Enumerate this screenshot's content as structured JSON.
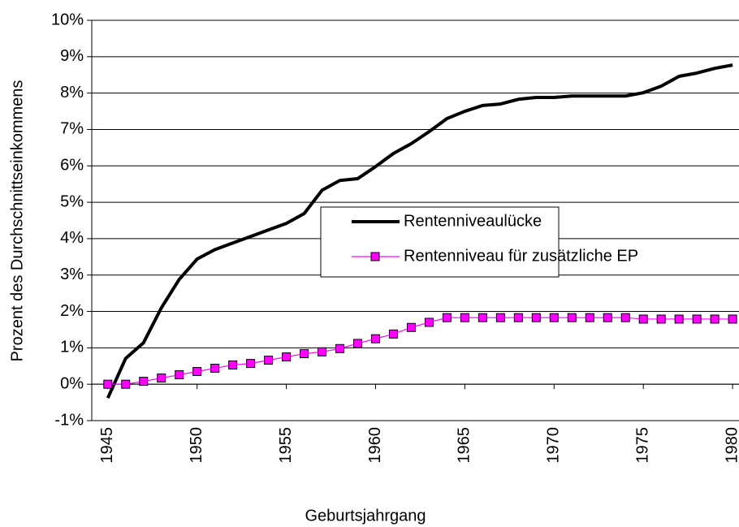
{
  "chart_data": {
    "type": "line",
    "x_label": "Geburtsjahrgang",
    "y_label": "Prozent des Durchschnittseinkommens",
    "x": [
      1945,
      1946,
      1947,
      1948,
      1949,
      1950,
      1951,
      1952,
      1953,
      1954,
      1955,
      1956,
      1957,
      1958,
      1959,
      1960,
      1961,
      1962,
      1963,
      1964,
      1965,
      1966,
      1967,
      1968,
      1969,
      1970,
      1971,
      1972,
      1973,
      1974,
      1975,
      1976,
      1977,
      1978,
      1979,
      1980
    ],
    "series": [
      {
        "name": "Rentenniveaulücke",
        "color": "#000000",
        "marker": false,
        "values": [
          -0.38,
          0.71,
          1.14,
          2.1,
          2.88,
          3.44,
          3.7,
          3.88,
          4.06,
          4.24,
          4.42,
          4.69,
          5.33,
          5.6,
          5.65,
          5.98,
          6.34,
          6.61,
          6.94,
          7.3,
          7.5,
          7.66,
          7.7,
          7.83,
          7.88,
          7.88,
          7.92,
          7.92,
          7.92,
          7.92,
          8.01,
          8.19,
          8.46,
          8.55,
          8.68,
          8.77
        ]
      },
      {
        "name": "Rentenniveau für zusätzliche EP",
        "color": "#ff00ff",
        "marker": true,
        "values": [
          0,
          0,
          0.08,
          0.17,
          0.26,
          0.35,
          0.44,
          0.53,
          0.57,
          0.66,
          0.75,
          0.84,
          0.89,
          0.98,
          1.12,
          1.25,
          1.38,
          1.56,
          1.7,
          1.83,
          1.83,
          1.83,
          1.83,
          1.83,
          1.83,
          1.83,
          1.83,
          1.83,
          1.83,
          1.83,
          1.79,
          1.79,
          1.79,
          1.79,
          1.79,
          1.79
        ]
      }
    ],
    "xlim": [
      1944.1,
      1980.36
    ],
    "xticks": [
      1945,
      1950,
      1955,
      1960,
      1965,
      1970,
      1975,
      1980
    ],
    "ylim": [
      -1,
      10
    ],
    "yticks": [
      {
        "value": -1,
        "label": "-1%"
      },
      {
        "value": 0,
        "label": "0%"
      },
      {
        "value": 1,
        "label": "1%"
      },
      {
        "value": 2,
        "label": "2%"
      },
      {
        "value": 3,
        "label": "3%"
      },
      {
        "value": 4,
        "label": "4%"
      },
      {
        "value": 5,
        "label": "5%"
      },
      {
        "value": 6,
        "label": "6%"
      },
      {
        "value": 7,
        "label": "7%"
      },
      {
        "value": 8,
        "label": "8%"
      },
      {
        "value": 9,
        "label": "9%"
      },
      {
        "value": 10,
        "label": "10%"
      }
    ],
    "grid": true
  }
}
